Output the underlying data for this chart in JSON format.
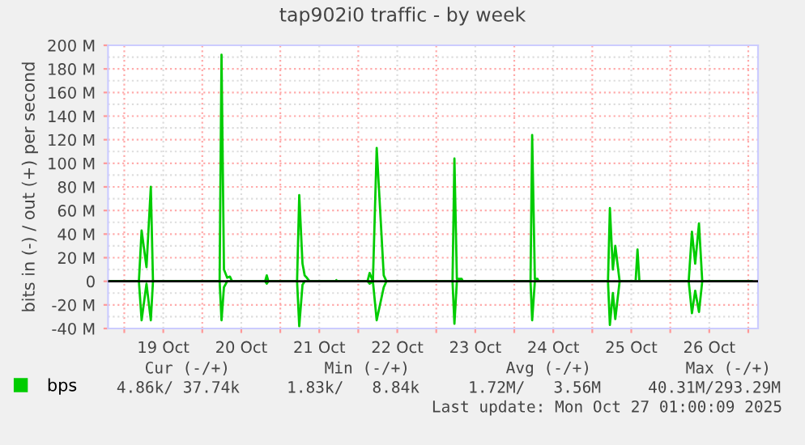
{
  "chart_data": {
    "type": "line",
    "title": "tap902i0 traffic - by week",
    "ylabel": "bits in (-) / out (+) per second",
    "x": [
      "2025-10-18T19:00",
      "2025-10-19T04:30",
      "2025-10-19T05:20",
      "2025-10-19T06:50",
      "2025-10-19T08:10",
      "2025-10-19T08:50",
      "2025-10-20T05:20",
      "2025-10-20T05:55",
      "2025-10-20T06:40",
      "2025-10-20T07:40",
      "2025-10-20T08:30",
      "2025-10-20T09:10",
      "2025-10-20T19:20",
      "2025-10-20T19:50",
      "2025-10-20T20:20",
      "2025-10-21T05:10",
      "2025-10-21T05:50",
      "2025-10-21T06:50",
      "2025-10-21T07:30",
      "2025-10-21T08:10",
      "2025-10-21T09:00",
      "2025-10-21T17:00",
      "2025-10-21T17:15",
      "2025-10-21T17:30",
      "2025-10-22T02:50",
      "2025-10-22T03:30",
      "2025-10-22T04:30",
      "2025-10-22T05:40",
      "2025-10-22T07:50",
      "2025-10-22T08:40",
      "2025-10-23T05:00",
      "2025-10-23T05:35",
      "2025-10-23T06:20",
      "2025-10-23T07:50",
      "2025-10-23T08:10",
      "2025-10-24T05:00",
      "2025-10-24T05:30",
      "2025-10-24T06:20",
      "2025-10-24T07:10",
      "2025-10-24T07:30",
      "2025-10-25T04:50",
      "2025-10-25T05:25",
      "2025-10-25T06:20",
      "2025-10-25T07:05",
      "2025-10-25T08:25",
      "2025-10-25T13:20",
      "2025-10-25T13:55",
      "2025-10-25T14:30",
      "2025-10-26T05:40",
      "2025-10-26T06:40",
      "2025-10-26T07:40",
      "2025-10-26T08:50",
      "2025-10-26T09:50",
      "2025-10-27T01:00"
    ],
    "series": [
      {
        "name": "bps",
        "color": "#00cc00",
        "values": [
          0,
          0,
          43,
          12,
          80,
          0,
          0,
          192,
          10,
          3,
          4,
          0,
          0,
          5,
          0,
          0,
          73,
          15,
          5,
          3,
          0,
          0,
          1,
          0,
          0,
          7,
          0,
          113,
          5,
          0,
          0,
          104,
          2,
          2,
          0,
          0,
          124,
          2,
          2,
          0,
          0,
          62,
          10,
          30,
          0,
          0,
          27,
          0,
          0,
          42,
          15,
          49,
          0,
          0
        ]
      },
      {
        "color": "#00cc00",
        "values": [
          0,
          0,
          -33,
          -2,
          -33,
          0,
          0,
          -33,
          -5,
          0,
          0,
          0,
          0,
          -2,
          0,
          0,
          -38,
          -3,
          0,
          0,
          0,
          0,
          0,
          0,
          0,
          -2,
          0,
          -33,
          -5,
          0,
          0,
          -36,
          0,
          0,
          0,
          0,
          -33,
          0,
          0,
          0,
          0,
          -37,
          -10,
          -32,
          0,
          0,
          0,
          0,
          0,
          -27,
          -8,
          -26,
          0,
          0
        ]
      }
    ],
    "xlim": [
      "2025-10-18T19:00",
      "2025-10-27T03:00"
    ],
    "xticks": [
      {
        "value": "2025-10-19T00:00",
        "label": null
      },
      {
        "value": "2025-10-19T12:00",
        "label": "19 Oct"
      },
      {
        "value": "2025-10-20T00:00",
        "label": null
      },
      {
        "value": "2025-10-20T12:00",
        "label": "20 Oct"
      },
      {
        "value": "2025-10-21T00:00",
        "label": null
      },
      {
        "value": "2025-10-21T12:00",
        "label": "21 Oct"
      },
      {
        "value": "2025-10-22T00:00",
        "label": null
      },
      {
        "value": "2025-10-22T12:00",
        "label": "22 Oct"
      },
      {
        "value": "2025-10-23T00:00",
        "label": null
      },
      {
        "value": "2025-10-23T12:00",
        "label": "23 Oct"
      },
      {
        "value": "2025-10-24T00:00",
        "label": null
      },
      {
        "value": "2025-10-24T12:00",
        "label": "24 Oct"
      },
      {
        "value": "2025-10-25T00:00",
        "label": null
      },
      {
        "value": "2025-10-25T12:00",
        "label": "25 Oct"
      },
      {
        "value": "2025-10-26T00:00",
        "label": null
      },
      {
        "value": "2025-10-26T12:00",
        "label": "26 Oct"
      },
      {
        "value": "2025-10-27T00:00",
        "label": null
      }
    ],
    "ylim": [
      -40,
      200
    ],
    "yticks": [
      {
        "value": -40,
        "label": "-40 M"
      },
      {
        "value": -20,
        "label": "-20 M"
      },
      0,
      {
        "value": 20,
        "label": "20 M"
      },
      {
        "value": 40,
        "label": "40 M"
      },
      {
        "value": 60,
        "label": "60 M"
      },
      {
        "value": 80,
        "label": "80 M"
      },
      {
        "value": 100,
        "label": "100 M"
      },
      {
        "value": 120,
        "label": "120 M"
      },
      {
        "value": 140,
        "label": "140 M"
      },
      {
        "value": 160,
        "label": "160 M"
      },
      {
        "value": 180,
        "label": "180 M"
      },
      {
        "value": 200,
        "label": "200 M"
      }
    ],
    "ref_lines": [
      {
        "axis": "y",
        "value": 0,
        "color": "#000000"
      }
    ],
    "grid": true,
    "legend": "bottom",
    "marker": "none",
    "line_style": "solid",
    "annotations": [
      "Cur (-/+)",
      "Min (-/+)",
      "Avg (-/+)",
      "Max (-/+)",
      "4.86k/ 37.74k",
      "1.83k/   8.84k",
      "1.72M/   3.56M",
      "40.31M/293.29M",
      "Last update: Mon Oct 27 01:00:09 2025"
    ]
  }
}
